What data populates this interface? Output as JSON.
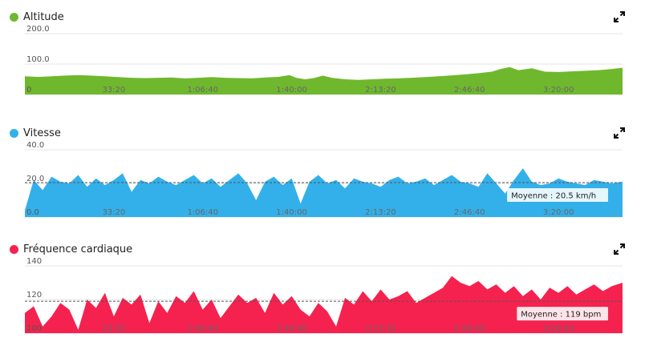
{
  "colors": {
    "altitude": "#6fb82e",
    "speed": "#33b0ea",
    "heart": "#f5224f",
    "grid": "#e4e4e4"
  },
  "charts": [
    {
      "title": "Altitude",
      "icon": "expand-icon",
      "y_ticks": [
        "200.0",
        "100.0",
        "0"
      ],
      "x_ticks": [
        "33:20",
        "1:06:40",
        "1:40:00",
        "2:13:20",
        "2:46:40",
        "3:20:00"
      ]
    },
    {
      "title": "Vitesse",
      "icon": "expand-icon",
      "y_ticks": [
        "40.0",
        "20.0",
        "0.0"
      ],
      "x_ticks": [
        "33:20",
        "1:06:40",
        "1:40:00",
        "2:13:20",
        "2:46:40",
        "3:20:00"
      ],
      "average_label": "Moyenne : 20.5 km/h"
    },
    {
      "title": "Fréquence cardiaque",
      "icon": "expand-icon",
      "y_ticks": [
        "140",
        "120",
        "100"
      ],
      "x_ticks": [
        "33:20",
        "1:06:40",
        "1:40:00",
        "2:13:20",
        "2:46:40",
        "3:20:00"
      ],
      "average_label": "Moyenne : 119 bpm"
    }
  ],
  "chart_data": [
    {
      "type": "area",
      "title": "Altitude",
      "x_unit": "seconds",
      "xlim": [
        0,
        13440
      ],
      "ylim": [
        0,
        200
      ],
      "x_tick_values": [
        2000,
        4000,
        6000,
        8000,
        10000,
        12000
      ],
      "x_tick_labels": [
        "33:20",
        "1:06:40",
        "1:40:00",
        "2:13:20",
        "2:46:40",
        "3:20:00"
      ],
      "y_tick_values": [
        200,
        100,
        0
      ],
      "y_tick_labels": [
        "200.0",
        "100.0",
        "0"
      ],
      "x": [
        0,
        300,
        600,
        900,
        1200,
        1500,
        1800,
        2100,
        2400,
        2700,
        3000,
        3300,
        3600,
        3900,
        4200,
        4500,
        4800,
        5100,
        5400,
        5700,
        5950,
        6100,
        6300,
        6500,
        6700,
        6900,
        7200,
        7500,
        7800,
        8100,
        8400,
        8700,
        9000,
        9300,
        9600,
        9900,
        10200,
        10500,
        10700,
        10900,
        11100,
        11400,
        11700,
        12000,
        12300,
        12600,
        12900,
        13200,
        13440
      ],
      "y": [
        60,
        58,
        60,
        62,
        64,
        62,
        60,
        57,
        55,
        54,
        55,
        56,
        53,
        55,
        57,
        55,
        54,
        53,
        56,
        58,
        64,
        55,
        50,
        54,
        62,
        55,
        50,
        48,
        50,
        52,
        53,
        55,
        57,
        60,
        63,
        66,
        70,
        75,
        84,
        90,
        80,
        86,
        75,
        74,
        76,
        78,
        80,
        84,
        88
      ]
    },
    {
      "type": "area",
      "title": "Vitesse",
      "x_unit": "seconds",
      "xlim": [
        0,
        13440
      ],
      "ylim": [
        0,
        40
      ],
      "average": 20.5,
      "x_tick_values": [
        2000,
        4000,
        6000,
        8000,
        10000,
        12000
      ],
      "x_tick_labels": [
        "33:20",
        "1:06:40",
        "1:40:00",
        "2:13:20",
        "2:46:40",
        "3:20:00"
      ],
      "y_tick_values": [
        40,
        20,
        0
      ],
      "y_tick_labels": [
        "40.0",
        "20.0",
        "0.0"
      ],
      "x": [
        0,
        200,
        400,
        600,
        800,
        1000,
        1200,
        1400,
        1600,
        1800,
        2000,
        2200,
        2400,
        2600,
        2800,
        3000,
        3200,
        3400,
        3600,
        3800,
        4000,
        4200,
        4400,
        4600,
        4800,
        5000,
        5200,
        5400,
        5600,
        5800,
        6000,
        6200,
        6400,
        6600,
        6800,
        7000,
        7200,
        7400,
        7600,
        7800,
        8000,
        8200,
        8400,
        8600,
        8800,
        9000,
        9200,
        9400,
        9600,
        9800,
        10000,
        10200,
        10400,
        10600,
        10800,
        11000,
        11200,
        11400,
        11600,
        11800,
        12000,
        12200,
        12400,
        12600,
        12800,
        13000,
        13200,
        13440
      ],
      "y": [
        4,
        22,
        16,
        24,
        21,
        20,
        25,
        18,
        23,
        19,
        22,
        26,
        15,
        22,
        20,
        24,
        21,
        19,
        22,
        25,
        20,
        23,
        18,
        22,
        26,
        20,
        10,
        21,
        24,
        19,
        23,
        8,
        21,
        25,
        20,
        22,
        17,
        23,
        21,
        20,
        18,
        22,
        24,
        20,
        21,
        23,
        19,
        22,
        25,
        21,
        20,
        18,
        26,
        20,
        14,
        22,
        29,
        21,
        19,
        20,
        23,
        21,
        20,
        19,
        22,
        21,
        20,
        21
      ]
    },
    {
      "type": "area",
      "title": "Fréquence cardiaque",
      "x_unit": "seconds",
      "xlim": [
        0,
        13440
      ],
      "ylim": [
        100,
        140
      ],
      "average": 119,
      "x_tick_values": [
        2000,
        4000,
        6000,
        8000,
        10000,
        12000
      ],
      "x_tick_labels": [
        "33:20",
        "1:06:40",
        "1:40:00",
        "2:13:20",
        "2:46:40",
        "3:20:00"
      ],
      "y_tick_values": [
        140,
        120,
        100
      ],
      "y_tick_labels": [
        "140",
        "120",
        "100"
      ],
      "x": [
        0,
        200,
        400,
        600,
        800,
        1000,
        1200,
        1400,
        1600,
        1800,
        2000,
        2200,
        2400,
        2600,
        2800,
        3000,
        3200,
        3400,
        3600,
        3800,
        4000,
        4200,
        4400,
        4600,
        4800,
        5000,
        5200,
        5400,
        5600,
        5800,
        6000,
        6200,
        6400,
        6600,
        6800,
        7000,
        7200,
        7400,
        7600,
        7800,
        8000,
        8200,
        8400,
        8600,
        8800,
        9000,
        9200,
        9400,
        9600,
        9800,
        10000,
        10200,
        10400,
        10600,
        10800,
        11000,
        11200,
        11400,
        11600,
        11800,
        12000,
        12200,
        12400,
        12600,
        12800,
        13000,
        13200,
        13440
      ],
      "y": [
        112,
        116,
        104,
        110,
        118,
        114,
        102,
        120,
        115,
        124,
        110,
        121,
        117,
        123,
        106,
        119,
        112,
        122,
        118,
        125,
        114,
        120,
        109,
        116,
        123,
        118,
        121,
        112,
        124,
        117,
        122,
        114,
        110,
        118,
        113,
        104,
        121,
        117,
        125,
        119,
        126,
        120,
        122,
        125,
        118,
        121,
        124,
        127,
        134,
        130,
        128,
        131,
        126,
        129,
        124,
        128,
        122,
        126,
        120,
        127,
        124,
        128,
        123,
        126,
        129,
        125,
        128,
        130
      ]
    }
  ]
}
